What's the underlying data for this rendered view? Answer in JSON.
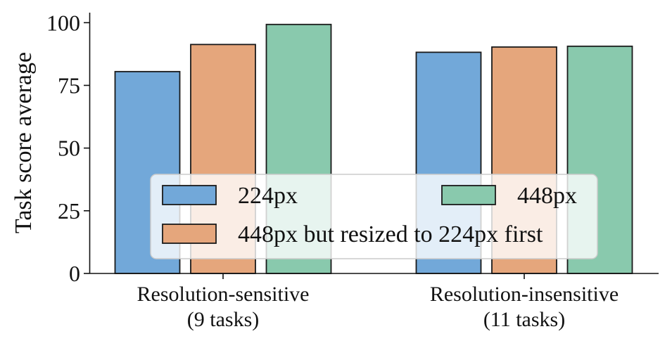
{
  "chart_data": {
    "type": "bar",
    "ylabel": "Task score average",
    "xlabel": "",
    "ylim": [
      0,
      104
    ],
    "yticks": [
      0,
      25,
      50,
      75,
      100
    ],
    "categories": [
      [
        "Resolution-sensitive",
        "(9 tasks)"
      ],
      [
        "Resolution-insensitive",
        "(11 tasks)"
      ]
    ],
    "series": [
      {
        "name": "224px",
        "color": "#72a8d9",
        "values": [
          80.5,
          88.2
        ]
      },
      {
        "name": "448px but resized to 224px first",
        "color": "#e5a67c",
        "values": [
          91.3,
          90.3
        ]
      },
      {
        "name": "448px",
        "color": "#89c9ad",
        "values": [
          99.3,
          90.6
        ]
      }
    ],
    "legend": {
      "placement": "lower-center",
      "columns": 2,
      "order": [
        0,
        2,
        1
      ]
    },
    "grid": false
  }
}
